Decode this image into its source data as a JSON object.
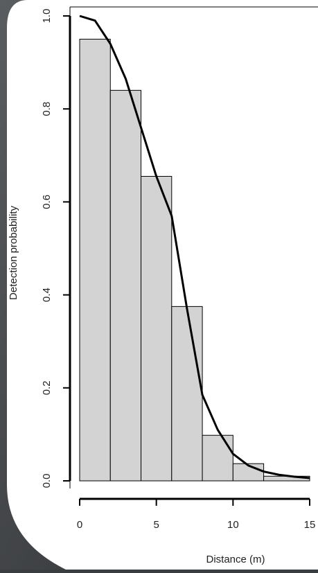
{
  "chart_data": {
    "type": "histogram",
    "xlabel": "Distance (m)",
    "ylabel": "Detection probability",
    "bins": [
      0,
      2,
      4,
      6,
      8,
      10,
      12,
      15
    ],
    "values": [
      0.95,
      0.84,
      0.655,
      0.375,
      0.098,
      0.037,
      0.01
    ],
    "color": "#d3d3d3",
    "curve": {
      "type": "line",
      "color": "#000000",
      "x": [
        0,
        1,
        2,
        3,
        4,
        5,
        6,
        7,
        8,
        9,
        10,
        11,
        12,
        13,
        14,
        15
      ],
      "values": [
        1.0,
        0.99,
        0.94,
        0.865,
        0.76,
        0.655,
        0.57,
        0.37,
        0.185,
        0.11,
        0.058,
        0.033,
        0.02,
        0.013,
        0.009,
        0.006
      ]
    },
    "xlim": [
      0,
      15
    ],
    "ylim": [
      0,
      1
    ],
    "xticks": [
      0,
      5,
      10,
      15
    ],
    "yticks": [
      {
        "value": 0,
        "label": "0.0"
      },
      0.2,
      0.4,
      0.6,
      0.8,
      {
        "value": 1,
        "label": "1.0"
      }
    ]
  }
}
